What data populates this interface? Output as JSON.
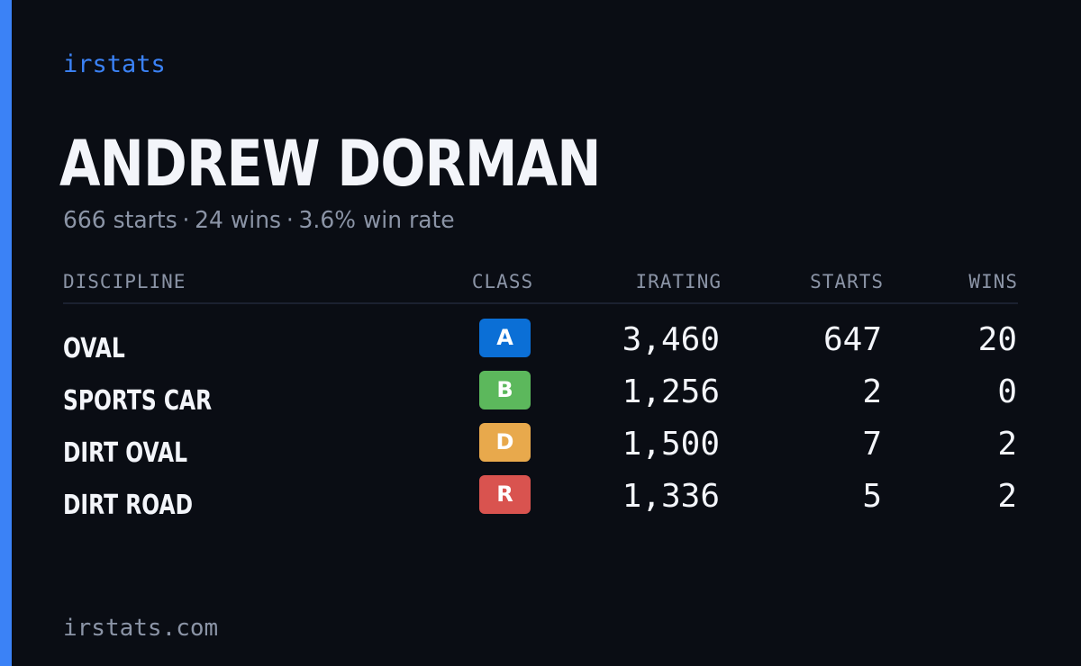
{
  "brand": "irstats",
  "player": {
    "name": "ANDREW DORMAN",
    "summary": {
      "starts": "666 starts",
      "wins": "24 wins",
      "win_rate": "3.6% win rate",
      "separator": "·"
    }
  },
  "table": {
    "headers": {
      "discipline": "DISCIPLINE",
      "class": "CLASS",
      "irating": "IRATING",
      "starts": "STARTS",
      "wins": "WINS"
    },
    "rows": [
      {
        "discipline": "OVAL",
        "class": "A",
        "class_color": "#0b6fd6",
        "irating": "3,460",
        "starts": "647",
        "wins": "20"
      },
      {
        "discipline": "SPORTS CAR",
        "class": "B",
        "class_color": "#5cb85c",
        "irating": "1,256",
        "starts": "2",
        "wins": "0"
      },
      {
        "discipline": "DIRT OVAL",
        "class": "D",
        "class_color": "#e8a94c",
        "irating": "1,500",
        "starts": "7",
        "wins": "2"
      },
      {
        "discipline": "DIRT ROAD",
        "class": "R",
        "class_color": "#d9534f",
        "irating": "1,336",
        "starts": "5",
        "wins": "2"
      }
    ]
  },
  "footer": {
    "url": "irstats.com"
  },
  "colors": {
    "accent": "#3b82f6",
    "background": "#0a0d14",
    "text_primary": "#f3f5fa",
    "text_muted": "#8b94a6"
  }
}
